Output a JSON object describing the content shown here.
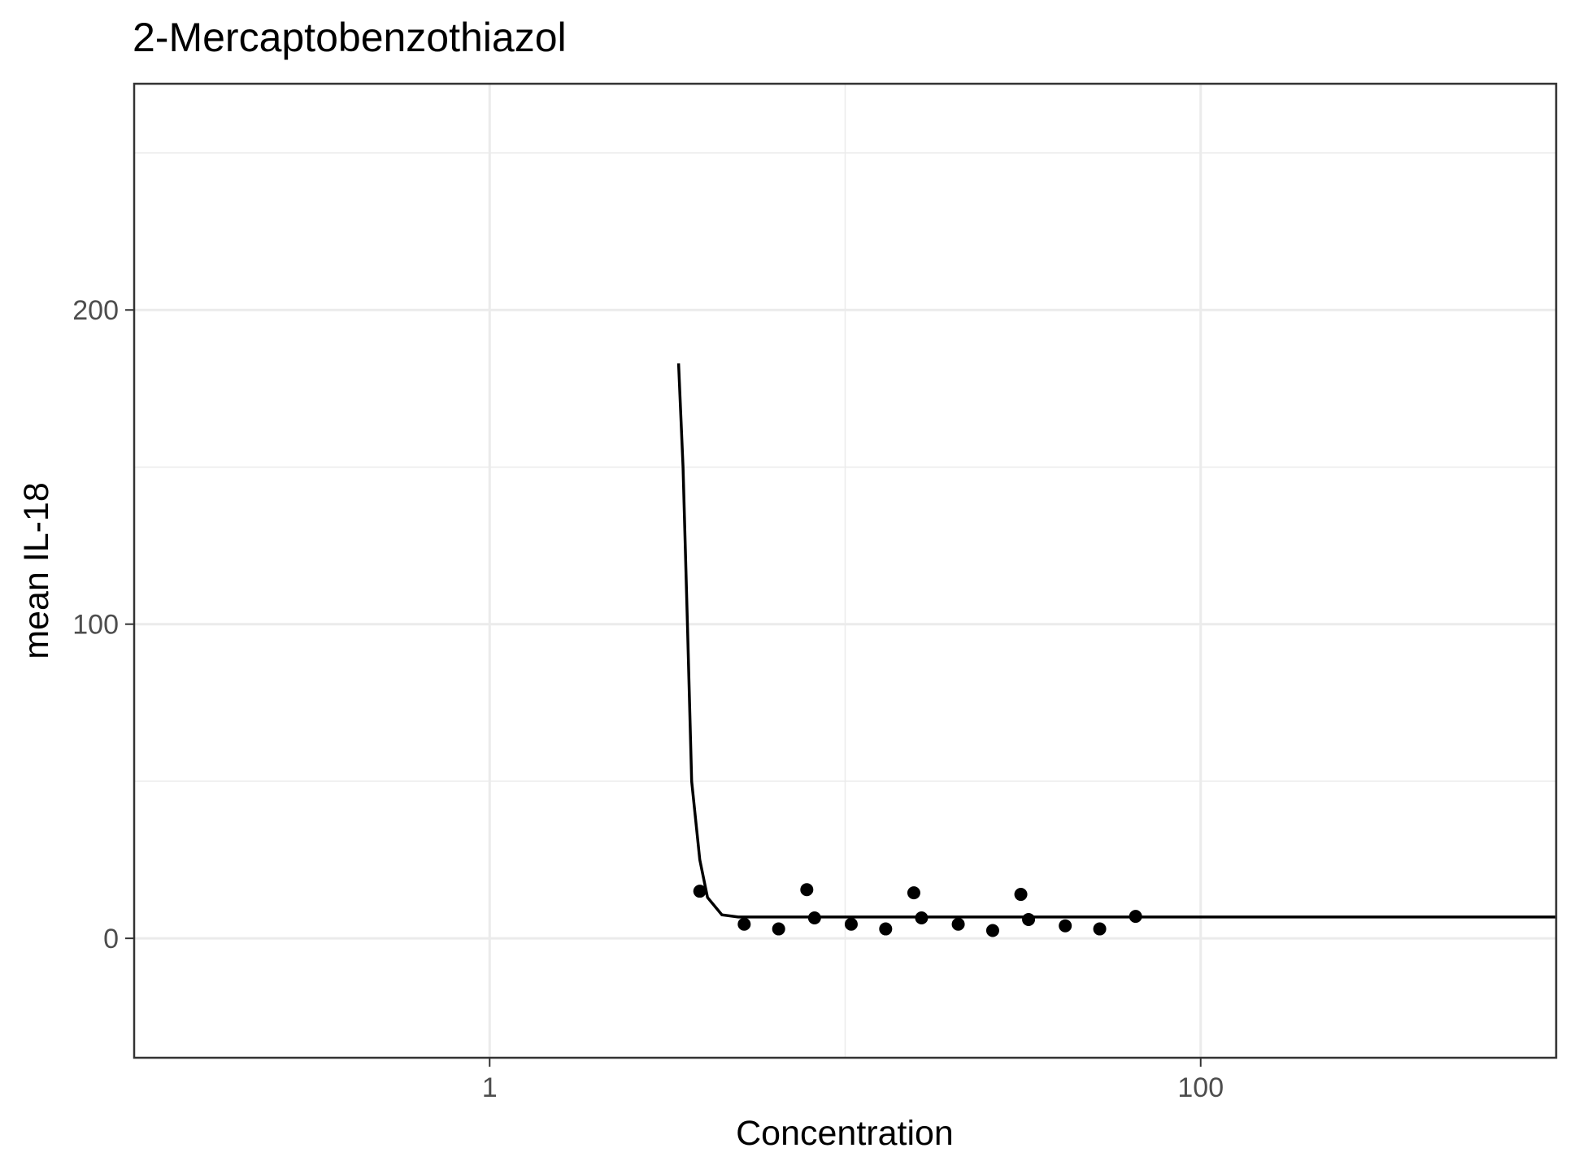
{
  "chart_data": {
    "type": "scatter",
    "title": "2-Mercaptobenzothiazol",
    "xlabel": "Concentration",
    "ylabel": "mean IL-18",
    "x_scale": "log10",
    "xlim": [
      0.1,
      1000
    ],
    "ylim": [
      -38,
      272
    ],
    "x_ticks": [
      {
        "value": 1,
        "label": "1"
      },
      {
        "value": 100,
        "label": "100"
      }
    ],
    "x_minor_ticks": [
      0.1,
      10,
      1000
    ],
    "y_ticks": [
      {
        "value": 0,
        "label": "0"
      },
      {
        "value": 100,
        "label": "100"
      },
      {
        "value": 200,
        "label": "200"
      }
    ],
    "y_minor_ticks": [
      50,
      150,
      250
    ],
    "grid": true,
    "legend": "none",
    "points": [
      {
        "x": 3.9,
        "y": 15
      },
      {
        "x": 5.2,
        "y": 4.5
      },
      {
        "x": 6.5,
        "y": 3
      },
      {
        "x": 7.8,
        "y": 15.5
      },
      {
        "x": 8.2,
        "y": 6.5
      },
      {
        "x": 10.4,
        "y": 4.5
      },
      {
        "x": 13,
        "y": 3
      },
      {
        "x": 15.6,
        "y": 14.5
      },
      {
        "x": 16.4,
        "y": 6.5
      },
      {
        "x": 20.8,
        "y": 4.5
      },
      {
        "x": 26,
        "y": 2.5
      },
      {
        "x": 31.2,
        "y": 14
      },
      {
        "x": 32.8,
        "y": 6
      },
      {
        "x": 41.6,
        "y": 4
      },
      {
        "x": 52,
        "y": 3
      },
      {
        "x": 65.6,
        "y": 7
      }
    ],
    "fit_line": [
      {
        "x": 3.4,
        "y": 183
      },
      {
        "x": 3.5,
        "y": 150
      },
      {
        "x": 3.6,
        "y": 100
      },
      {
        "x": 3.7,
        "y": 50
      },
      {
        "x": 3.9,
        "y": 25
      },
      {
        "x": 4.1,
        "y": 13
      },
      {
        "x": 4.5,
        "y": 7.5
      },
      {
        "x": 5.0,
        "y": 6.8
      },
      {
        "x": 6.0,
        "y": 6.8
      },
      {
        "x": 1000,
        "y": 6.8
      }
    ]
  }
}
